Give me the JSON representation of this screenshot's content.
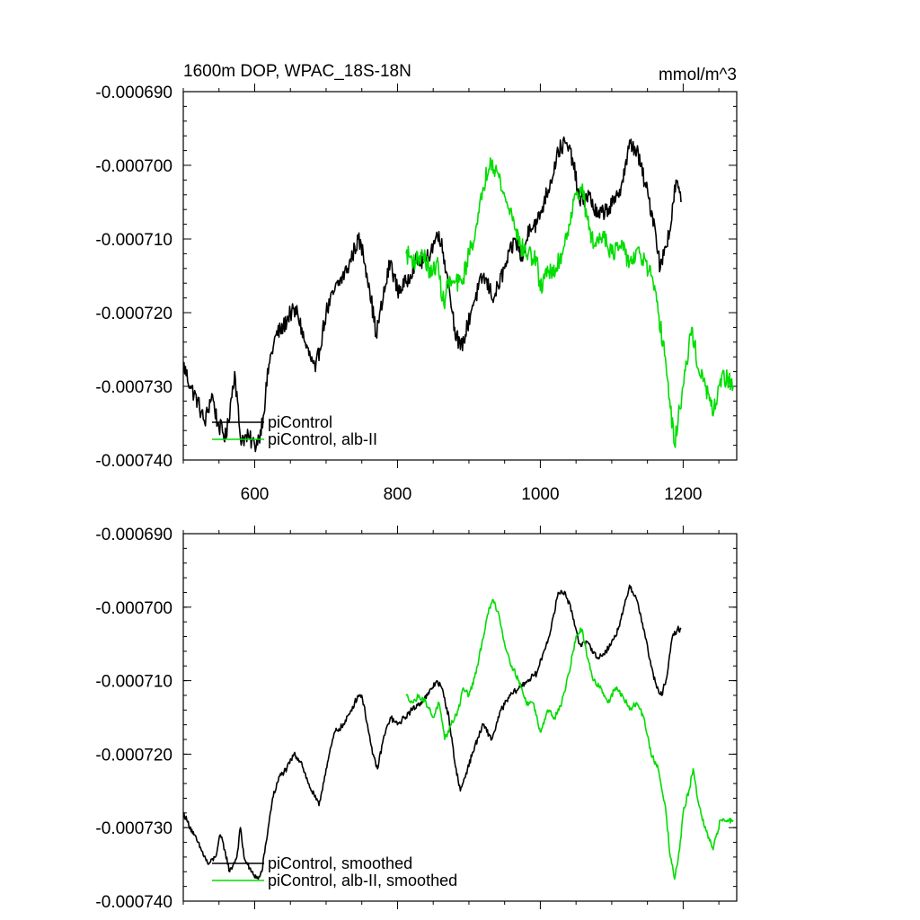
{
  "chart_data": [
    {
      "type": "line",
      "title": "1600m DOP, WPAC_18S-18N",
      "units": "mmol/m^3",
      "xlim": [
        500,
        1275
      ],
      "ylim": [
        -0.00074,
        -0.00069
      ],
      "x_ticks": [
        600,
        800,
        1000,
        1200
      ],
      "x_tick_labels": [
        "600",
        "800",
        "1000",
        "1200"
      ],
      "show_x_tick_labels": true,
      "y_ticks": [
        -0.00069,
        -0.0007,
        -0.00071,
        -0.00072,
        -0.00073,
        -0.00074
      ],
      "y_tick_labels": [
        "-0.000690",
        "-0.000700",
        "-0.000710",
        "-0.000720",
        "-0.000730",
        "-0.000740"
      ],
      "grid": false,
      "legend_position": "bottom-left",
      "series": [
        {
          "name": "piControl",
          "color": "#000000",
          "noise": 1.2e-06,
          "points": [
            [
              500,
              -0.000727
            ],
            [
              510,
              -0.00073
            ],
            [
              520,
              -0.000732
            ],
            [
              530,
              -0.000735
            ],
            [
              540,
              -0.000731
            ],
            [
              548,
              -0.000735
            ],
            [
              560,
              -0.000737
            ],
            [
              572,
              -0.000728
            ],
            [
              580,
              -0.000737
            ],
            [
              592,
              -0.000737
            ],
            [
              600,
              -0.000738
            ],
            [
              606,
              -0.000737
            ],
            [
              612,
              -0.000734
            ],
            [
              620,
              -0.000727
            ],
            [
              630,
              -0.000723
            ],
            [
              640,
              -0.000722
            ],
            [
              650,
              -0.00072
            ],
            [
              660,
              -0.00072
            ],
            [
              670,
              -0.000724
            ],
            [
              685,
              -0.000728
            ],
            [
              700,
              -0.00072
            ],
            [
              712,
              -0.000717
            ],
            [
              730,
              -0.000714
            ],
            [
              745,
              -0.00071
            ],
            [
              752,
              -0.000712
            ],
            [
              760,
              -0.000716
            ],
            [
              770,
              -0.000723
            ],
            [
              780,
              -0.000718
            ],
            [
              790,
              -0.000713
            ],
            [
              800,
              -0.000717
            ],
            [
              812,
              -0.000716
            ],
            [
              825,
              -0.000713
            ],
            [
              840,
              -0.000713
            ],
            [
              858,
              -0.000709
            ],
            [
              870,
              -0.000715
            ],
            [
              880,
              -0.000722
            ],
            [
              888,
              -0.000725
            ],
            [
              895,
              -0.000723
            ],
            [
              905,
              -0.000719
            ],
            [
              920,
              -0.000715
            ],
            [
              935,
              -0.000718
            ],
            [
              950,
              -0.000714
            ],
            [
              965,
              -0.00071
            ],
            [
              975,
              -0.000713
            ],
            [
              985,
              -0.000708
            ],
            [
              995,
              -0.000708
            ],
            [
              1005,
              -0.000705
            ],
            [
              1015,
              -0.000702
            ],
            [
              1025,
              -0.000698
            ],
            [
              1035,
              -0.000697
            ],
            [
              1045,
              -0.000699
            ],
            [
              1055,
              -0.000705
            ],
            [
              1068,
              -0.000704
            ],
            [
              1080,
              -0.000707
            ],
            [
              1092,
              -0.000706
            ],
            [
              1105,
              -0.000705
            ],
            [
              1115,
              -0.000702
            ],
            [
              1126,
              -0.000697
            ],
            [
              1135,
              -0.000698
            ],
            [
              1148,
              -0.000703
            ],
            [
              1160,
              -0.000708
            ],
            [
              1168,
              -0.000714
            ],
            [
              1175,
              -0.000711
            ],
            [
              1183,
              -0.000708
            ],
            [
              1190,
              -0.000702
            ],
            [
              1197,
              -0.000705
            ]
          ]
        },
        {
          "name": "piControl, alb-II",
          "color": "#00dd00",
          "noise": 1.3e-06,
          "points": [
            [
              812,
              -0.000712
            ],
            [
              825,
              -0.000713
            ],
            [
              835,
              -0.000712
            ],
            [
              848,
              -0.000715
            ],
            [
              855,
              -0.000713
            ],
            [
              865,
              -0.000719
            ],
            [
              870,
              -0.000716
            ],
            [
              880,
              -0.000716
            ],
            [
              890,
              -0.000716
            ],
            [
              900,
              -0.000712
            ],
            [
              912,
              -0.000708
            ],
            [
              920,
              -0.000703
            ],
            [
              930,
              -0.000699
            ],
            [
              940,
              -0.000701
            ],
            [
              952,
              -0.000705
            ],
            [
              962,
              -0.000707
            ],
            [
              972,
              -0.000711
            ],
            [
              983,
              -0.000712
            ],
            [
              995,
              -0.000713
            ],
            [
              1000,
              -0.000717
            ],
            [
              1008,
              -0.000714
            ],
            [
              1018,
              -0.000715
            ],
            [
              1030,
              -0.000712
            ],
            [
              1040,
              -0.000708
            ],
            [
              1050,
              -0.000704
            ],
            [
              1058,
              -0.000703
            ],
            [
              1065,
              -0.000707
            ],
            [
              1075,
              -0.000711
            ],
            [
              1088,
              -0.000709
            ],
            [
              1100,
              -0.000712
            ],
            [
              1112,
              -0.000711
            ],
            [
              1125,
              -0.000713
            ],
            [
              1140,
              -0.000712
            ],
            [
              1155,
              -0.000715
            ],
            [
              1165,
              -0.00072
            ],
            [
              1175,
              -0.000726
            ],
            [
              1182,
              -0.000733
            ],
            [
              1188,
              -0.000738
            ],
            [
              1195,
              -0.000733
            ],
            [
              1205,
              -0.000727
            ],
            [
              1212,
              -0.000722
            ],
            [
              1222,
              -0.000728
            ],
            [
              1235,
              -0.000731
            ],
            [
              1242,
              -0.000734
            ],
            [
              1252,
              -0.000729
            ],
            [
              1262,
              -0.000729
            ],
            [
              1270,
              -0.00073
            ]
          ]
        }
      ]
    },
    {
      "type": "line",
      "title": "",
      "units": "",
      "xlim": [
        500,
        1275
      ],
      "ylim": [
        -0.00074,
        -0.00069
      ],
      "x_ticks": [
        600,
        800,
        1000,
        1200
      ],
      "x_tick_labels": [],
      "show_x_tick_labels": false,
      "y_ticks": [
        -0.00069,
        -0.0007,
        -0.00071,
        -0.00072,
        -0.00073,
        -0.00074
      ],
      "y_tick_labels": [
        "-0.000690",
        "-0.000700",
        "-0.000710",
        "-0.000720",
        "-0.000730",
        "-0.000740"
      ],
      "grid": false,
      "legend_position": "bottom-left",
      "series": [
        {
          "name": "piControl, smoothed",
          "color": "#000000",
          "noise": 4e-07,
          "points": [
            [
              500,
              -0.000728
            ],
            [
              505,
              -0.000729
            ],
            [
              515,
              -0.000731
            ],
            [
              525,
              -0.000733
            ],
            [
              535,
              -0.000735
            ],
            [
              545,
              -0.000734
            ],
            [
              552,
              -0.000731
            ],
            [
              558,
              -0.000733
            ],
            [
              565,
              -0.000736
            ],
            [
              575,
              -0.000734
            ],
            [
              580,
              -0.00073
            ],
            [
              585,
              -0.000734
            ],
            [
              595,
              -0.000736
            ],
            [
              605,
              -0.000737
            ],
            [
              610,
              -0.000736
            ],
            [
              616,
              -0.000732
            ],
            [
              625,
              -0.000726
            ],
            [
              635,
              -0.000723
            ],
            [
              645,
              -0.000722
            ],
            [
              655,
              -0.00072
            ],
            [
              665,
              -0.000721
            ],
            [
              675,
              -0.000724
            ],
            [
              690,
              -0.000727
            ],
            [
              700,
              -0.000722
            ],
            [
              712,
              -0.000717
            ],
            [
              725,
              -0.000716
            ],
            [
              735,
              -0.000714
            ],
            [
              745,
              -0.000712
            ],
            [
              750,
              -0.000712
            ],
            [
              758,
              -0.000716
            ],
            [
              765,
              -0.00072
            ],
            [
              772,
              -0.000722
            ],
            [
              780,
              -0.000718
            ],
            [
              790,
              -0.000715
            ],
            [
              800,
              -0.000716
            ],
            [
              810,
              -0.000715
            ],
            [
              820,
              -0.000714
            ],
            [
              832,
              -0.000713
            ],
            [
              842,
              -0.000712
            ],
            [
              855,
              -0.00071
            ],
            [
              862,
              -0.000711
            ],
            [
              872,
              -0.000715
            ],
            [
              880,
              -0.000721
            ],
            [
              888,
              -0.000725
            ],
            [
              898,
              -0.000722
            ],
            [
              908,
              -0.000719
            ],
            [
              920,
              -0.000716
            ],
            [
              932,
              -0.000718
            ],
            [
              945,
              -0.000714
            ],
            [
              958,
              -0.000712
            ],
            [
              970,
              -0.000711
            ],
            [
              982,
              -0.00071
            ],
            [
              995,
              -0.000709
            ],
            [
              1005,
              -0.000706
            ],
            [
              1015,
              -0.000703
            ],
            [
              1025,
              -0.000698
            ],
            [
              1035,
              -0.000698
            ],
            [
              1045,
              -0.000701
            ],
            [
              1055,
              -0.000705
            ],
            [
              1068,
              -0.000705
            ],
            [
              1080,
              -0.000707
            ],
            [
              1092,
              -0.000706
            ],
            [
              1105,
              -0.000704
            ],
            [
              1115,
              -0.000701
            ],
            [
              1125,
              -0.000697
            ],
            [
              1135,
              -0.000699
            ],
            [
              1145,
              -0.000703
            ],
            [
              1155,
              -0.000708
            ],
            [
              1163,
              -0.000711
            ],
            [
              1170,
              -0.000712
            ],
            [
              1178,
              -0.000709
            ],
            [
              1185,
              -0.000704
            ],
            [
              1192,
              -0.000703
            ],
            [
              1197,
              -0.000703
            ]
          ]
        },
        {
          "name": "piControl, alb-II, smoothed",
          "color": "#00dd00",
          "noise": 4e-07,
          "points": [
            [
              812,
              -0.000712
            ],
            [
              822,
              -0.000713
            ],
            [
              830,
              -0.000712
            ],
            [
              840,
              -0.000713
            ],
            [
              850,
              -0.000715
            ],
            [
              858,
              -0.000713
            ],
            [
              866,
              -0.000718
            ],
            [
              875,
              -0.000716
            ],
            [
              885,
              -0.000714
            ],
            [
              892,
              -0.000711
            ],
            [
              900,
              -0.000712
            ],
            [
              910,
              -0.000709
            ],
            [
              918,
              -0.000705
            ],
            [
              926,
              -0.000701
            ],
            [
              934,
              -0.000699
            ],
            [
              942,
              -0.000701
            ],
            [
              950,
              -0.000705
            ],
            [
              960,
              -0.000708
            ],
            [
              970,
              -0.00071
            ],
            [
              980,
              -0.000713
            ],
            [
              990,
              -0.000713
            ],
            [
              1000,
              -0.000717
            ],
            [
              1010,
              -0.000714
            ],
            [
              1020,
              -0.000715
            ],
            [
              1030,
              -0.000713
            ],
            [
              1040,
              -0.000709
            ],
            [
              1050,
              -0.000704
            ],
            [
              1058,
              -0.000703
            ],
            [
              1066,
              -0.000707
            ],
            [
              1075,
              -0.00071
            ],
            [
              1085,
              -0.000711
            ],
            [
              1095,
              -0.000713
            ],
            [
              1105,
              -0.000711
            ],
            [
              1115,
              -0.000712
            ],
            [
              1125,
              -0.000714
            ],
            [
              1135,
              -0.000713
            ],
            [
              1145,
              -0.000715
            ],
            [
              1155,
              -0.00072
            ],
            [
              1165,
              -0.000722
            ],
            [
              1175,
              -0.000727
            ],
            [
              1182,
              -0.000734
            ],
            [
              1188,
              -0.000737
            ],
            [
              1195,
              -0.000733
            ],
            [
              1200,
              -0.000728
            ],
            [
              1208,
              -0.000725
            ],
            [
              1214,
              -0.000722
            ],
            [
              1220,
              -0.000726
            ],
            [
              1230,
              -0.00073
            ],
            [
              1242,
              -0.000733
            ],
            [
              1252,
              -0.000729
            ],
            [
              1262,
              -0.000729
            ],
            [
              1270,
              -0.000729
            ]
          ]
        }
      ]
    }
  ]
}
